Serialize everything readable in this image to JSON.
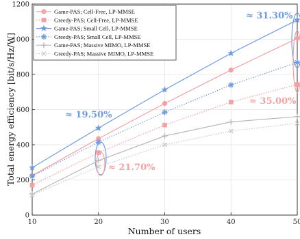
{
  "chart_data": {
    "type": "line",
    "xlabel": "Number of users",
    "ylabel": "Total energy efficiency [bit/s/Hz/W]",
    "xlim": [
      10,
      50
    ],
    "ylim": [
      0,
      1200
    ],
    "xticks": [
      "10",
      "20",
      "30",
      "40",
      "50"
    ],
    "yticks": [
      "0",
      "200",
      "400",
      "600",
      "800",
      "1000",
      "1200"
    ],
    "grid": true,
    "legend_position": "top-left",
    "x": [
      10,
      20,
      30,
      40,
      50
    ],
    "series": [
      {
        "name": "Game-PAS; Cell-Free, LP-MMSE",
        "values": [
          225,
          435,
          635,
          825,
          1005
        ],
        "color": "#f4a0a4",
        "marker": "circle",
        "dash": "solid"
      },
      {
        "name": "Greedy-PAS; Cell-Free, LP-MMSE",
        "values": [
          170,
          355,
          512,
          643,
          743
        ],
        "color": "#f4a0a4",
        "marker": "square",
        "dash": "dotted"
      },
      {
        "name": "Game-PAS; Small Cell, LP-MMSE",
        "values": [
          270,
          495,
          713,
          920,
          1110
        ],
        "color": "#6f9be0",
        "marker": "star",
        "dash": "solid"
      },
      {
        "name": "Greedy-PAS; Small Cell, LP-MMSE",
        "values": [
          222,
          415,
          585,
          740,
          868
        ],
        "color": "#6f9be0",
        "marker": "asterisk",
        "dash": "dotted"
      },
      {
        "name": "Game-PAS; Massive MIMO, LP-MMSE",
        "values": [
          120,
          310,
          450,
          530,
          560
        ],
        "color": "#b8b8b8",
        "marker": "plus",
        "dash": "solid"
      },
      {
        "name": "Greedy-PAS; Massive MIMO, LP-MMSE",
        "values": [
          115,
          275,
          400,
          478,
          522
        ],
        "color": "#c8c8c8",
        "marker": "cross",
        "dash": "dotted"
      }
    ],
    "annotations": [
      {
        "text": "≈ 19.50%",
        "color": "#6f9be0"
      },
      {
        "text": "≈ 21.70%",
        "color": "#f4a0a4"
      },
      {
        "text": "≈ 31.30%",
        "color": "#6f9be0"
      },
      {
        "text": "≈ 35.00%",
        "color": "#f4a0a4"
      }
    ]
  }
}
